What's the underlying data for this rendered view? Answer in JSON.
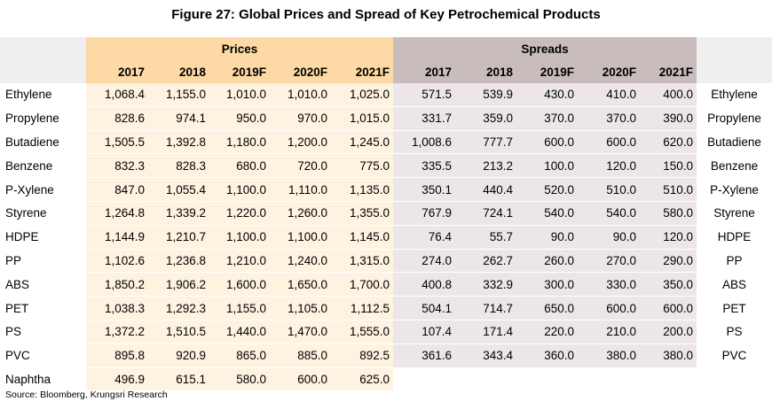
{
  "title": "Figure 27: Global Prices and Spread of Key Petrochemical Products",
  "source": "Source: Bloomberg, Krungsri Research",
  "chart_data": {
    "type": "table",
    "group_headers": {
      "prices": "Prices",
      "spreads": "Spreads"
    },
    "years": [
      "2017",
      "2018",
      "2019F",
      "2020F",
      "2021F"
    ],
    "rows": [
      {
        "product": "Ethylene",
        "prices": [
          "1,068.4",
          "1,155.0",
          "1,010.0",
          "1,010.0",
          "1,025.0"
        ],
        "spreads": [
          "571.5",
          "539.9",
          "430.0",
          "410.0",
          "400.0"
        ]
      },
      {
        "product": "Propylene",
        "prices": [
          "828.6",
          "974.1",
          "950.0",
          "970.0",
          "1,015.0"
        ],
        "spreads": [
          "331.7",
          "359.0",
          "370.0",
          "370.0",
          "390.0"
        ]
      },
      {
        "product": "Butadiene",
        "prices": [
          "1,505.5",
          "1,392.8",
          "1,180.0",
          "1,200.0",
          "1,245.0"
        ],
        "spreads": [
          "1,008.6",
          "777.7",
          "600.0",
          "600.0",
          "620.0"
        ]
      },
      {
        "product": "Benzene",
        "prices": [
          "832.3",
          "828.3",
          "680.0",
          "720.0",
          "775.0"
        ],
        "spreads": [
          "335.5",
          "213.2",
          "100.0",
          "120.0",
          "150.0"
        ]
      },
      {
        "product": "P-Xylene",
        "prices": [
          "847.0",
          "1,055.4",
          "1,100.0",
          "1,110.0",
          "1,135.0"
        ],
        "spreads": [
          "350.1",
          "440.4",
          "520.0",
          "510.0",
          "510.0"
        ]
      },
      {
        "product": "Styrene",
        "prices": [
          "1,264.8",
          "1,339.2",
          "1,220.0",
          "1,260.0",
          "1,355.0"
        ],
        "spreads": [
          "767.9",
          "724.1",
          "540.0",
          "540.0",
          "580.0"
        ]
      },
      {
        "product": "HDPE",
        "prices": [
          "1,144.9",
          "1,210.7",
          "1,100.0",
          "1,100.0",
          "1,145.0"
        ],
        "spreads": [
          "76.4",
          "55.7",
          "90.0",
          "90.0",
          "120.0"
        ]
      },
      {
        "product": "PP",
        "prices": [
          "1,102.6",
          "1,236.8",
          "1,210.0",
          "1,240.0",
          "1,315.0"
        ],
        "spreads": [
          "274.0",
          "262.7",
          "260.0",
          "270.0",
          "290.0"
        ]
      },
      {
        "product": "ABS",
        "prices": [
          "1,850.2",
          "1,906.2",
          "1,600.0",
          "1,650.0",
          "1,700.0"
        ],
        "spreads": [
          "400.8",
          "332.9",
          "300.0",
          "330.0",
          "350.0"
        ]
      },
      {
        "product": "PET",
        "prices": [
          "1,038.3",
          "1,292.3",
          "1,155.0",
          "1,105.0",
          "1,112.5"
        ],
        "spreads": [
          "504.1",
          "714.7",
          "650.0",
          "600.0",
          "600.0"
        ]
      },
      {
        "product": "PS",
        "prices": [
          "1,372.2",
          "1,510.5",
          "1,440.0",
          "1,470.0",
          "1,555.0"
        ],
        "spreads": [
          "107.4",
          "171.4",
          "220.0",
          "210.0",
          "200.0"
        ]
      },
      {
        "product": "PVC",
        "prices": [
          "895.8",
          "920.9",
          "865.0",
          "885.0",
          "892.5"
        ],
        "spreads": [
          "361.6",
          "343.4",
          "360.0",
          "380.0",
          "380.0"
        ]
      },
      {
        "product": "Naphtha",
        "prices": [
          "496.9",
          "615.1",
          "580.0",
          "600.0",
          "625.0"
        ],
        "spreads": []
      }
    ]
  },
  "colors": {
    "prices_header": "#fdd9a5",
    "prices_cells": "#fef2e1",
    "spreads_header": "#c8bcbd",
    "spreads_cells": "#ece6e8",
    "grey_header": "#efefef"
  }
}
